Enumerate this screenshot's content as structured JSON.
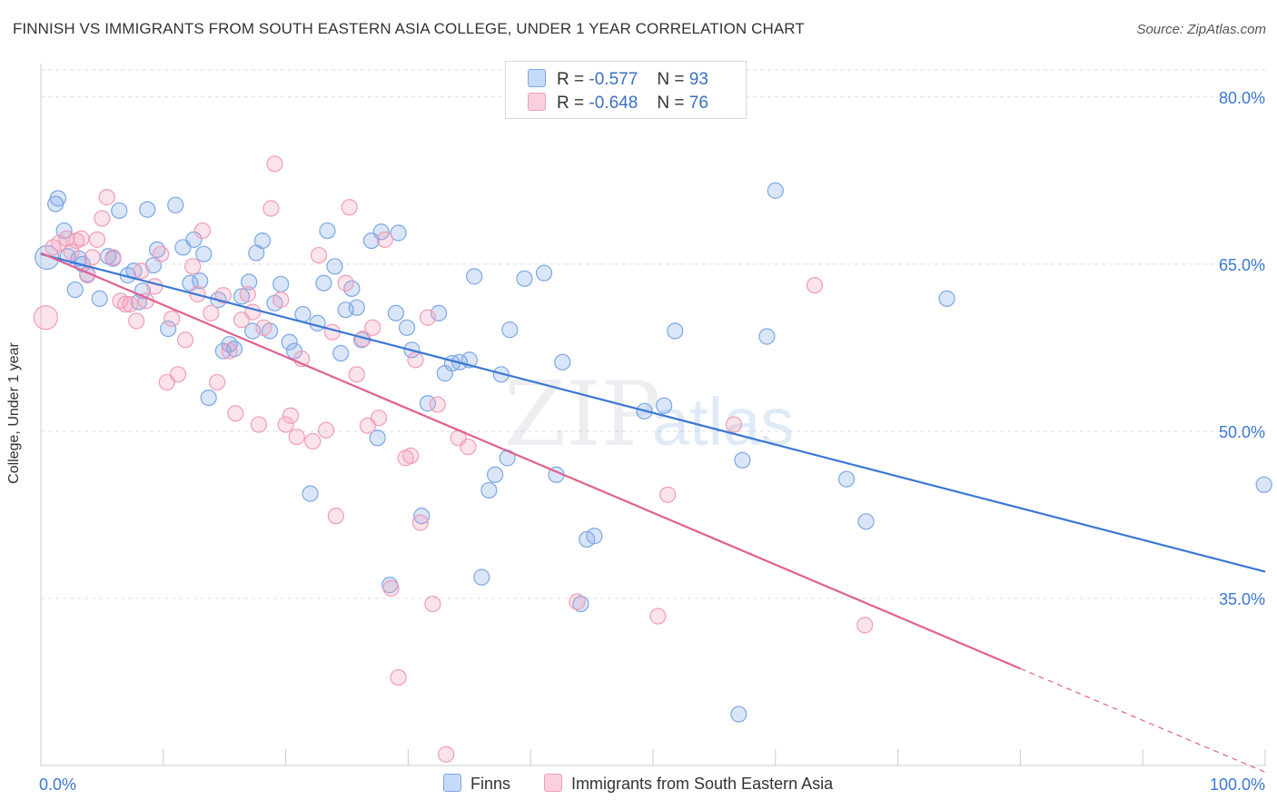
{
  "title": "FINNISH VS IMMIGRANTS FROM SOUTH EASTERN ASIA COLLEGE, UNDER 1 YEAR CORRELATION CHART",
  "source": "Source: ZipAtlas.com",
  "watermark": {
    "zip": "ZIP",
    "atlas": "atlas"
  },
  "legend_top": [
    {
      "r_label": "R =",
      "r_value": "-0.577",
      "n_label": "N =",
      "n_value": "93",
      "color": "#7aa7e6"
    },
    {
      "r_label": "R =",
      "r_value": "-0.648",
      "n_label": "N =",
      "n_value": "76",
      "color": "#f29bb8"
    }
  ],
  "chart_data": {
    "type": "scatter",
    "title": "FINNISH VS IMMIGRANTS FROM SOUTH EASTERN ASIA COLLEGE, UNDER 1 YEAR CORRELATION CHART",
    "xlabel": "",
    "ylabel": "College, Under 1 year",
    "xlim": [
      0,
      100
    ],
    "ylim": [
      20,
      83
    ],
    "x_tick_labels": [
      "0.0%",
      "100.0%"
    ],
    "y_ticks": [
      35,
      50,
      65,
      80
    ],
    "y_tick_labels": [
      "35.0%",
      "50.0%",
      "65.0%",
      "80.0%"
    ],
    "grid": true,
    "legend_position": "bottom",
    "series": [
      {
        "name": "Finns",
        "color": "#7aa7e6",
        "line_color": "#3a78d4",
        "trend": {
          "x0": 0,
          "y0": 65.9,
          "x1": 100,
          "y1": 37.4
        },
        "points": [
          [
            0.5,
            65.6
          ],
          [
            1.2,
            70.4
          ],
          [
            1.4,
            70.9
          ],
          [
            1.9,
            68.0
          ],
          [
            2.2,
            65.7
          ],
          [
            2.8,
            62.7
          ],
          [
            3.1,
            65.5
          ],
          [
            3.4,
            65.0
          ],
          [
            3.8,
            64.1
          ],
          [
            4.8,
            61.9
          ],
          [
            5.5,
            65.7
          ],
          [
            5.9,
            65.5
          ],
          [
            6.4,
            69.8
          ],
          [
            7.1,
            64.0
          ],
          [
            7.6,
            64.4
          ],
          [
            8.0,
            61.6
          ],
          [
            8.3,
            62.6
          ],
          [
            8.7,
            69.9
          ],
          [
            9.2,
            64.9
          ],
          [
            9.5,
            66.3
          ],
          [
            10.4,
            59.2
          ],
          [
            11.0,
            70.3
          ],
          [
            11.6,
            66.5
          ],
          [
            12.2,
            63.3
          ],
          [
            12.5,
            67.2
          ],
          [
            13.0,
            63.5
          ],
          [
            13.3,
            65.9
          ],
          [
            13.7,
            53.0
          ],
          [
            14.5,
            61.8
          ],
          [
            14.9,
            57.2
          ],
          [
            15.4,
            57.8
          ],
          [
            15.8,
            57.4
          ],
          [
            16.4,
            62.1
          ],
          [
            17.0,
            63.4
          ],
          [
            17.3,
            59.0
          ],
          [
            17.6,
            66.0
          ],
          [
            18.1,
            67.1
          ],
          [
            18.7,
            59.0
          ],
          [
            19.1,
            61.5
          ],
          [
            19.6,
            63.2
          ],
          [
            20.3,
            58.0
          ],
          [
            20.7,
            57.2
          ],
          [
            21.4,
            60.5
          ],
          [
            22.0,
            44.4
          ],
          [
            22.6,
            59.7
          ],
          [
            23.1,
            63.3
          ],
          [
            23.4,
            68.0
          ],
          [
            24.0,
            64.8
          ],
          [
            24.5,
            57.0
          ],
          [
            24.9,
            60.9
          ],
          [
            25.4,
            62.8
          ],
          [
            25.8,
            61.1
          ],
          [
            26.2,
            58.2
          ],
          [
            27.0,
            67.1
          ],
          [
            27.5,
            49.4
          ],
          [
            27.8,
            67.9
          ],
          [
            28.5,
            36.2
          ],
          [
            29.0,
            60.6
          ],
          [
            29.2,
            67.8
          ],
          [
            29.9,
            59.3
          ],
          [
            30.3,
            57.3
          ],
          [
            31.1,
            42.4
          ],
          [
            31.6,
            52.5
          ],
          [
            32.5,
            60.6
          ],
          [
            33.0,
            55.2
          ],
          [
            33.6,
            56.1
          ],
          [
            34.2,
            56.2
          ],
          [
            35.0,
            56.4
          ],
          [
            35.4,
            63.9
          ],
          [
            36.0,
            36.9
          ],
          [
            36.6,
            44.7
          ],
          [
            37.1,
            46.1
          ],
          [
            37.6,
            55.1
          ],
          [
            38.1,
            47.6
          ],
          [
            38.3,
            59.1
          ],
          [
            39.5,
            63.7
          ],
          [
            41.1,
            64.2
          ],
          [
            42.1,
            46.1
          ],
          [
            42.6,
            56.2
          ],
          [
            44.1,
            34.5
          ],
          [
            44.6,
            40.3
          ],
          [
            45.2,
            40.6
          ],
          [
            49.3,
            51.8
          ],
          [
            50.9,
            52.3
          ],
          [
            51.8,
            59.0
          ],
          [
            57.0,
            24.6
          ],
          [
            57.3,
            47.4
          ],
          [
            59.3,
            58.5
          ],
          [
            60.0,
            71.6
          ],
          [
            65.8,
            45.7
          ],
          [
            67.4,
            41.9
          ],
          [
            74.0,
            61.9
          ],
          [
            99.9,
            45.2
          ]
        ]
      },
      {
        "name": "Immigrants from South Eastern Asia",
        "color": "#f29bb8",
        "line_color": "#e0608e",
        "trend": {
          "x0": 0,
          "y0": 66.0,
          "x1": 80,
          "y1": 28.7
        },
        "trend_dashed_to": {
          "x": 100,
          "y": 19.4
        },
        "points": [
          [
            0.4,
            60.2
          ],
          [
            1.0,
            66.5
          ],
          [
            1.5,
            66.9
          ],
          [
            2.1,
            67.3
          ],
          [
            2.5,
            66.1
          ],
          [
            2.9,
            67.1
          ],
          [
            3.3,
            67.3
          ],
          [
            3.8,
            64.0
          ],
          [
            4.2,
            65.6
          ],
          [
            4.6,
            67.2
          ],
          [
            5.0,
            69.1
          ],
          [
            5.4,
            71.0
          ],
          [
            5.9,
            65.6
          ],
          [
            6.5,
            61.7
          ],
          [
            6.9,
            61.4
          ],
          [
            7.3,
            61.4
          ],
          [
            7.8,
            59.9
          ],
          [
            8.2,
            64.4
          ],
          [
            8.6,
            61.7
          ],
          [
            9.3,
            63.0
          ],
          [
            9.8,
            65.9
          ],
          [
            10.3,
            54.4
          ],
          [
            10.7,
            60.1
          ],
          [
            11.2,
            55.1
          ],
          [
            11.8,
            58.2
          ],
          [
            12.4,
            64.8
          ],
          [
            12.8,
            62.3
          ],
          [
            13.2,
            68.0
          ],
          [
            13.9,
            60.6
          ],
          [
            14.4,
            54.4
          ],
          [
            14.9,
            62.2
          ],
          [
            15.4,
            57.2
          ],
          [
            15.9,
            51.6
          ],
          [
            16.4,
            60.0
          ],
          [
            16.9,
            62.3
          ],
          [
            17.3,
            60.7
          ],
          [
            17.8,
            50.6
          ],
          [
            18.2,
            59.3
          ],
          [
            18.8,
            70.0
          ],
          [
            19.1,
            74.0
          ],
          [
            19.6,
            61.8
          ],
          [
            20.0,
            50.6
          ],
          [
            20.4,
            51.4
          ],
          [
            20.9,
            49.5
          ],
          [
            21.3,
            56.5
          ],
          [
            22.2,
            49.1
          ],
          [
            22.7,
            65.8
          ],
          [
            23.3,
            50.1
          ],
          [
            23.8,
            58.9
          ],
          [
            24.1,
            42.4
          ],
          [
            24.9,
            63.3
          ],
          [
            25.2,
            70.1
          ],
          [
            25.8,
            55.1
          ],
          [
            26.3,
            58.3
          ],
          [
            26.7,
            50.5
          ],
          [
            27.1,
            59.3
          ],
          [
            27.6,
            51.2
          ],
          [
            28.1,
            67.2
          ],
          [
            28.6,
            35.9
          ],
          [
            29.2,
            27.9
          ],
          [
            29.8,
            47.6
          ],
          [
            30.2,
            47.8
          ],
          [
            30.6,
            56.4
          ],
          [
            31.0,
            41.8
          ],
          [
            31.6,
            60.2
          ],
          [
            32.0,
            34.5
          ],
          [
            32.4,
            52.4
          ],
          [
            33.1,
            21.0
          ],
          [
            34.1,
            49.4
          ],
          [
            34.9,
            48.6
          ],
          [
            43.8,
            34.7
          ],
          [
            50.4,
            33.4
          ],
          [
            51.2,
            44.3
          ],
          [
            56.6,
            50.6
          ],
          [
            63.2,
            63.1
          ],
          [
            67.3,
            32.6
          ]
        ]
      }
    ]
  }
}
